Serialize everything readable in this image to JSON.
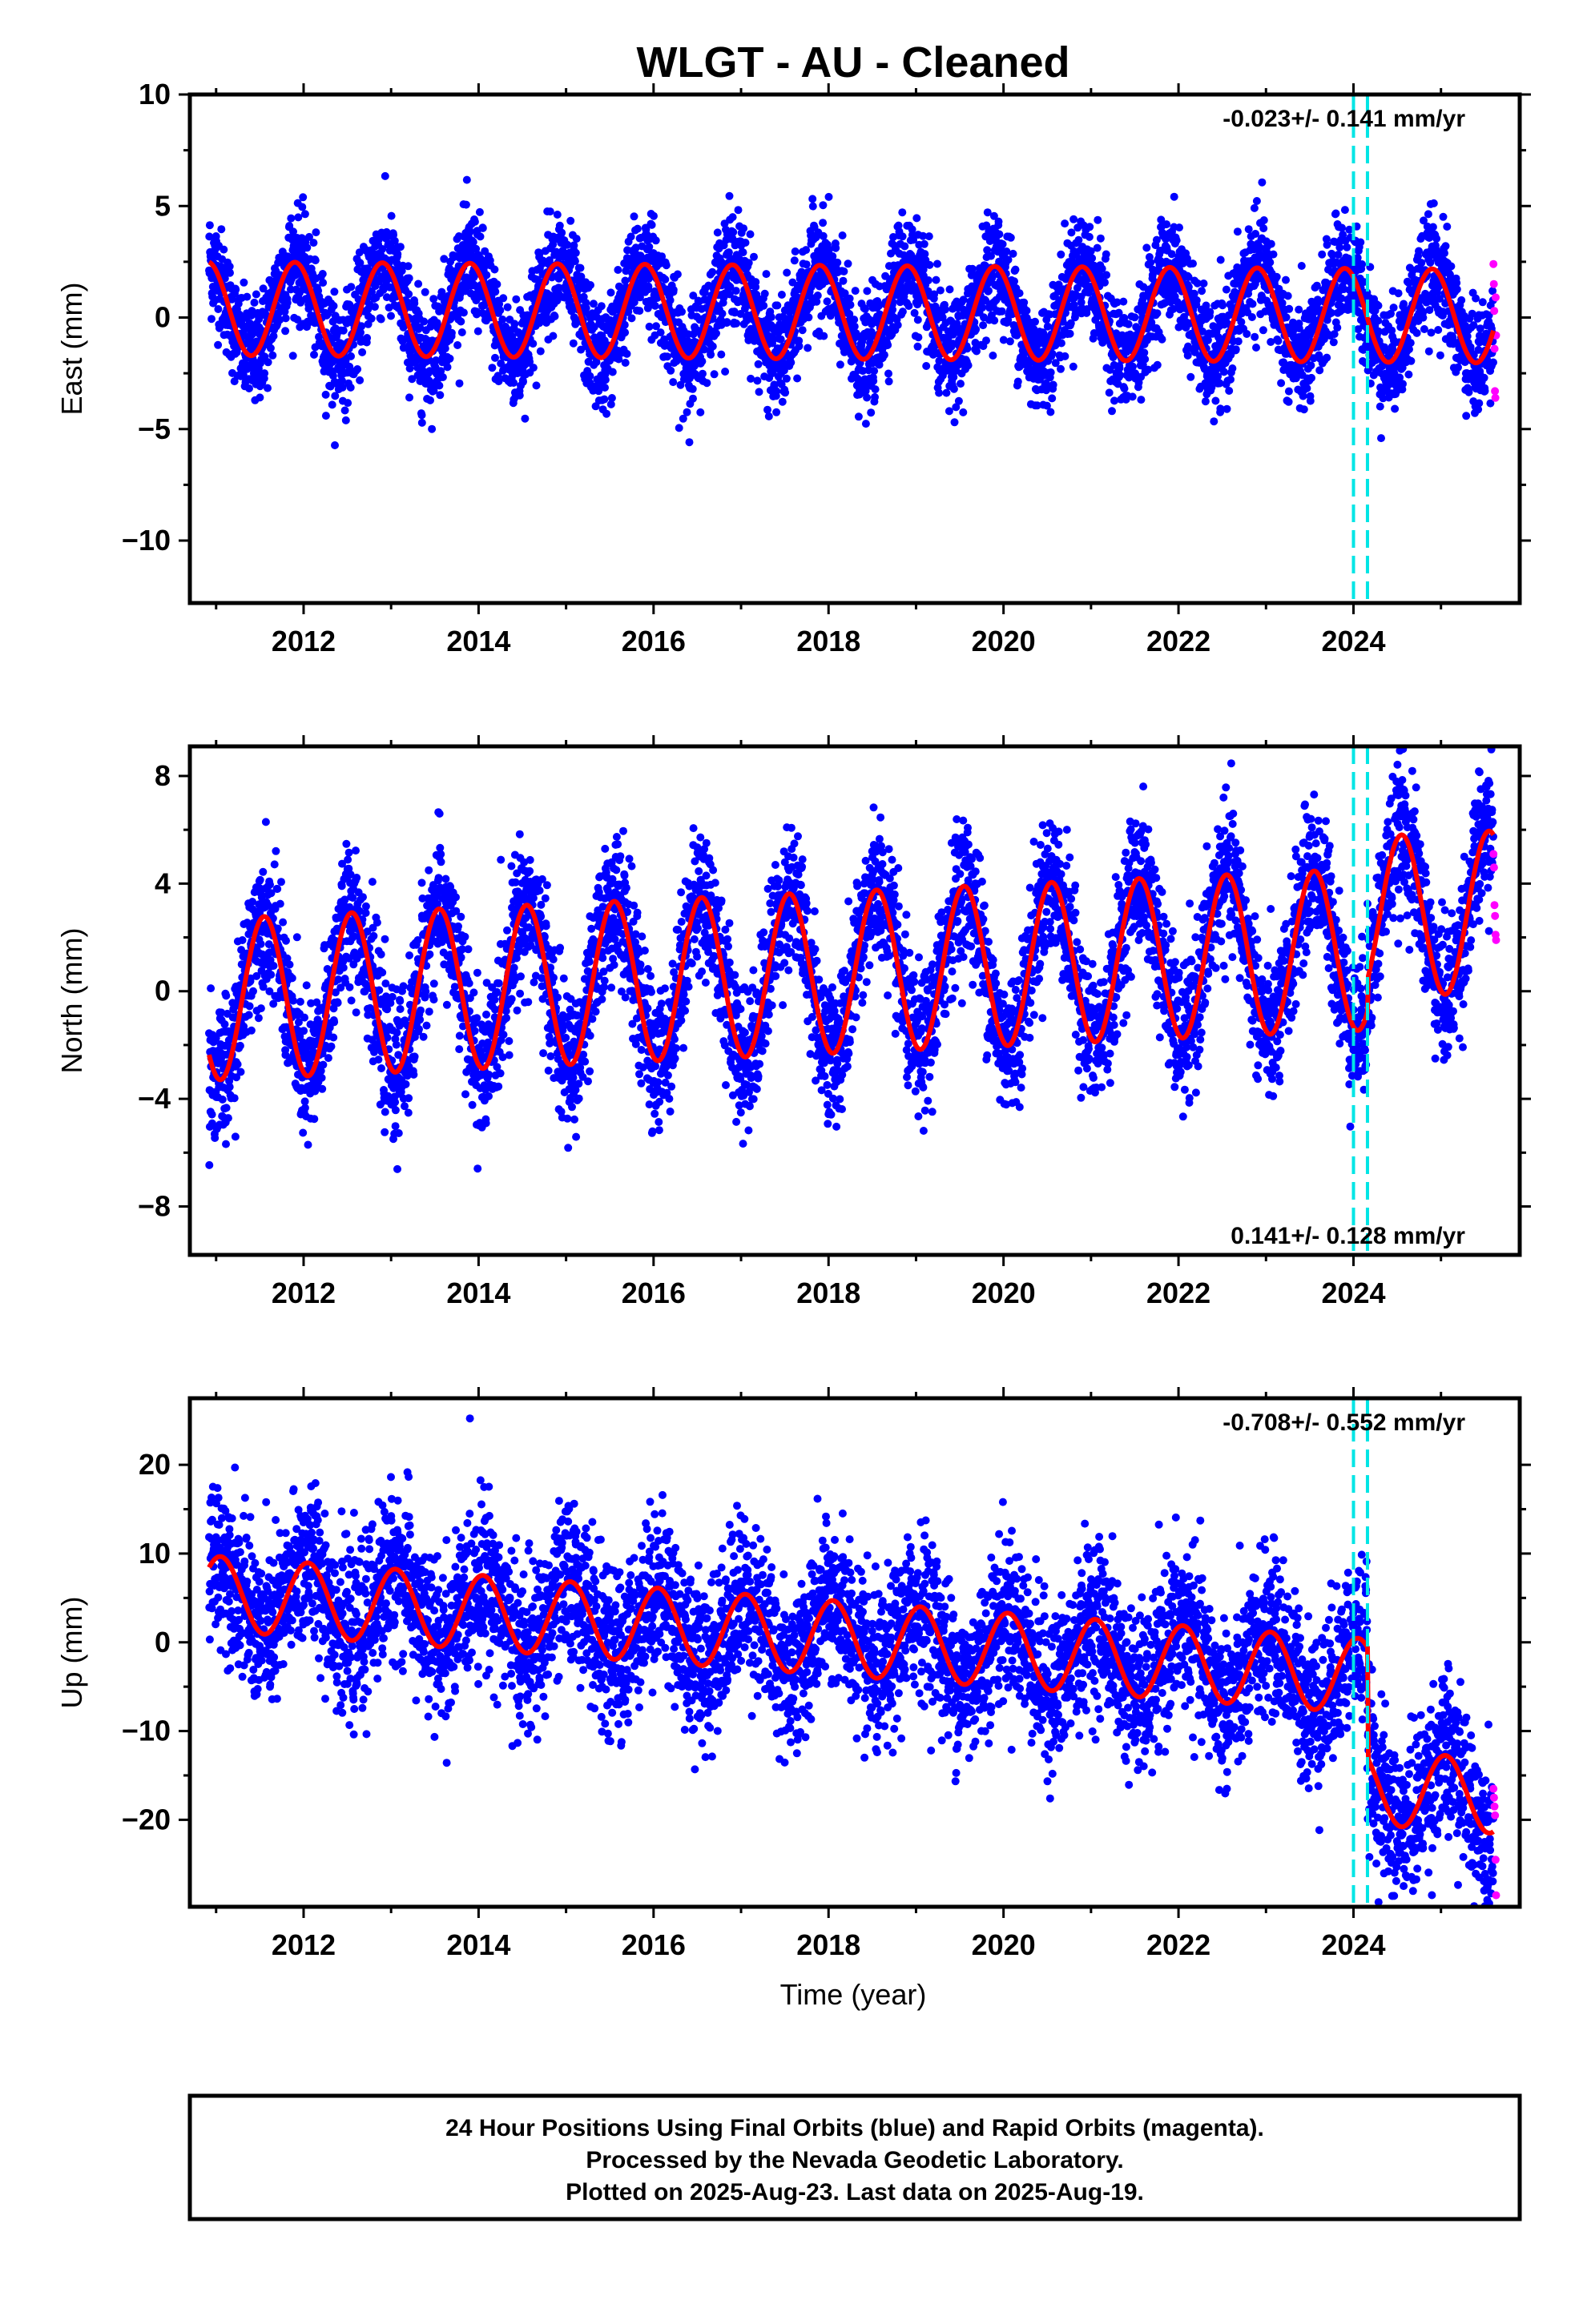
{
  "title": "WLGT  - AU - Cleaned",
  "xlabel": "Time (year)",
  "footer": [
    "24 Hour Positions Using Final Orbits (blue) and Rapid Orbits (magenta).",
    "Processed by the Nevada Geodetic Laboratory.",
    "Plotted on 2025-Aug-23. Last data on 2025-Aug-19."
  ],
  "colors": {
    "final": "#0000ff",
    "rapid": "#ff00ff",
    "model": "#ff0000",
    "events": "#00e5e5"
  },
  "chart_data": [
    {
      "type": "scatter",
      "ylabel": "East (mm)",
      "rate_text": "-0.023+/- 0.141 mm/yr",
      "rate_position": "top-right",
      "xlim": [
        2010.7,
        2025.9
      ],
      "ylim": [
        -12.8,
        10
      ],
      "xticks": [
        "2012",
        "2014",
        "2016",
        "2018",
        "2020",
        "2022",
        "2024"
      ],
      "xtick_values": [
        2012,
        2014,
        2016,
        2018,
        2020,
        2022,
        2024
      ],
      "yticks": [
        "10",
        "5",
        "0",
        "−5",
        "−10"
      ],
      "ytick_values": [
        10,
        5,
        0,
        -5,
        -10
      ],
      "event_lines": [
        2024.0,
        2024.16
      ],
      "model": {
        "trend_mm_per_yr": -0.023,
        "annual_amp": 2.1,
        "phase_peak": 0.9,
        "offset_at_2011": 0.4,
        "step_at_2024_16": 0
      },
      "scatter_sd": 1.2,
      "series": [
        {
          "name": "Final Orbits",
          "color": "#0000ff",
          "x_range": [
            2010.92,
            2025.6
          ]
        },
        {
          "name": "Rapid Orbits",
          "color": "#ff00ff",
          "x_range": [
            2025.6,
            2025.63
          ],
          "y": [
            2.4,
            1.5,
            0.3,
            -1.4,
            -3.3,
            -3.6,
            0.9,
            -0.8
          ]
        }
      ]
    },
    {
      "type": "scatter",
      "ylabel": "North (mm)",
      "rate_text": "0.141+/- 0.128 mm/yr",
      "rate_position": "bottom-right",
      "xlim": [
        2010.7,
        2025.9
      ],
      "ylim": [
        -9.8,
        9.1
      ],
      "xticks": [
        "2012",
        "2014",
        "2016",
        "2018",
        "2020",
        "2022",
        "2024"
      ],
      "xtick_values": [
        2012,
        2014,
        2016,
        2018,
        2020,
        2022,
        2024
      ],
      "yticks": [
        "8",
        "4",
        "0",
        "−4",
        "−8"
      ],
      "ytick_values": [
        8,
        4,
        0,
        -4,
        -8
      ],
      "event_lines": [
        2024.0,
        2024.16
      ],
      "model": {
        "trend_mm_per_yr": 0.141,
        "annual_amp": 3.0,
        "phase_peak": 0.55,
        "offset_at_2011": -0.3,
        "step_at_2024_16": 1.2
      },
      "scatter_sd": 1.3,
      "series": [
        {
          "name": "Final Orbits",
          "color": "#0000ff",
          "x_range": [
            2010.92,
            2025.6
          ]
        },
        {
          "name": "Rapid Orbits",
          "color": "#ff00ff",
          "x_range": [
            2025.6,
            2025.63
          ],
          "y": [
            5.1,
            4.6,
            3.2,
            2.8,
            2.1,
            1.9
          ]
        }
      ]
    },
    {
      "type": "scatter",
      "ylabel": "Up (mm)",
      "rate_text": "-0.708+/- 0.552 mm/yr",
      "rate_position": "top-right",
      "xlim": [
        2010.7,
        2025.9
      ],
      "ylim": [
        -29.8,
        27.5
      ],
      "xticks": [
        "2012",
        "2014",
        "2016",
        "2018",
        "2020",
        "2022",
        "2024"
      ],
      "xtick_values": [
        2012,
        2014,
        2016,
        2018,
        2020,
        2022,
        2024
      ],
      "yticks": [
        "20",
        "10",
        "0",
        "−10",
        "−20"
      ],
      "ytick_values": [
        20,
        10,
        0,
        -10,
        -20
      ],
      "event_lines": [
        2024.0,
        2024.16
      ],
      "model": {
        "trend_mm_per_yr": -0.708,
        "annual_amp": 4.2,
        "phase_peak": 0.05,
        "offset_at_2011": 5.5,
        "step_at_2024_16": -12.5
      },
      "scatter_sd": 4.5,
      "series": [
        {
          "name": "Final Orbits",
          "color": "#0000ff",
          "x_range": [
            2010.92,
            2025.6
          ]
        },
        {
          "name": "Rapid Orbits",
          "color": "#ff00ff",
          "x_range": [
            2025.6,
            2025.63
          ],
          "y": [
            -16.5,
            -17.5,
            -18.5,
            -19.5,
            -24.5,
            -28.5
          ]
        }
      ]
    }
  ]
}
